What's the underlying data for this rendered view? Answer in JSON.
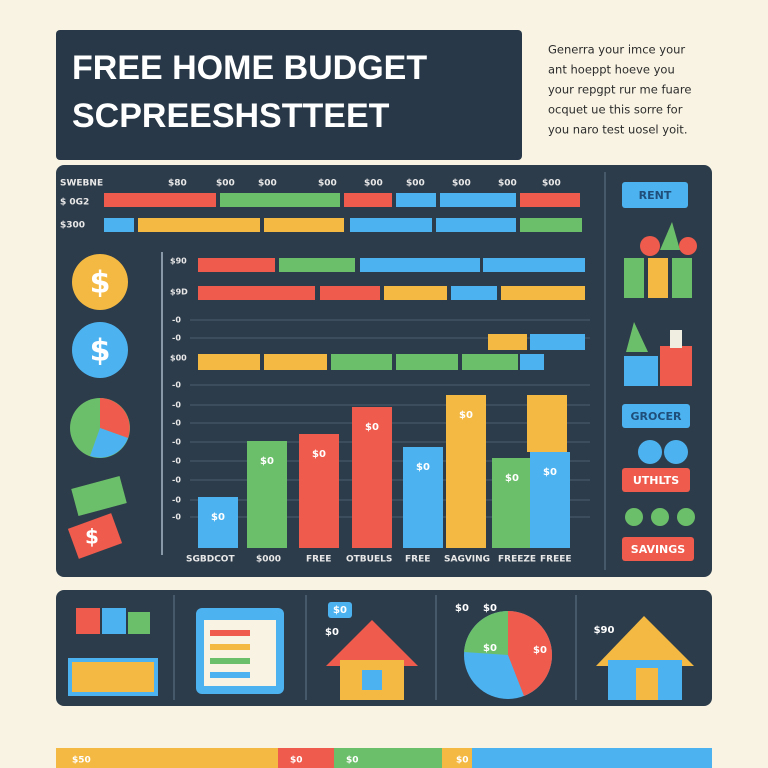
{
  "header": {
    "title_lines": [
      "FREE HOME BUDGET",
      "SCPREESHSTTEET"
    ],
    "description_lines": [
      "Generra your imce your",
      "ant hoeppt hoeve you",
      "your repgpt rur me fuare",
      "ocquet ue this sorre for",
      "you naro test uosel yoit."
    ]
  },
  "top_table": {
    "header": [
      "SWEBNE",
      "$80",
      "$00",
      "$00",
      "$00",
      "$00",
      "$00",
      "$00",
      "$00",
      "$00"
    ],
    "row_labels": [
      "$ 0G2",
      "$300"
    ]
  },
  "chart": {
    "row_labels": [
      "$90",
      "$9D",
      "$00"
    ],
    "y_labels": [
      "-0",
      "-0",
      "-0",
      "-0",
      "-0",
      "-0",
      "-0",
      "-0",
      "-0",
      "-0"
    ],
    "bar_labels": [
      "$0",
      "$0",
      "$0",
      "$0",
      "$0",
      "$0",
      "$0",
      "$0"
    ],
    "x_labels": [
      "SGBDCOT",
      "$000",
      "FREE",
      "OTBUELS",
      "FREE",
      "SAGVING",
      "FREEZE",
      "FREEE"
    ]
  },
  "sidebar": {
    "buttons": [
      "RENT",
      "GROCER",
      "UTHLTS",
      "SAVINGS"
    ]
  },
  "bottom_panels": {
    "labels": [
      "$0",
      "$0",
      "$0",
      "$0",
      "$0",
      "$0",
      "$90"
    ]
  },
  "footer": {
    "labels": [
      "$50",
      "$0",
      "$0",
      "$0"
    ]
  }
}
